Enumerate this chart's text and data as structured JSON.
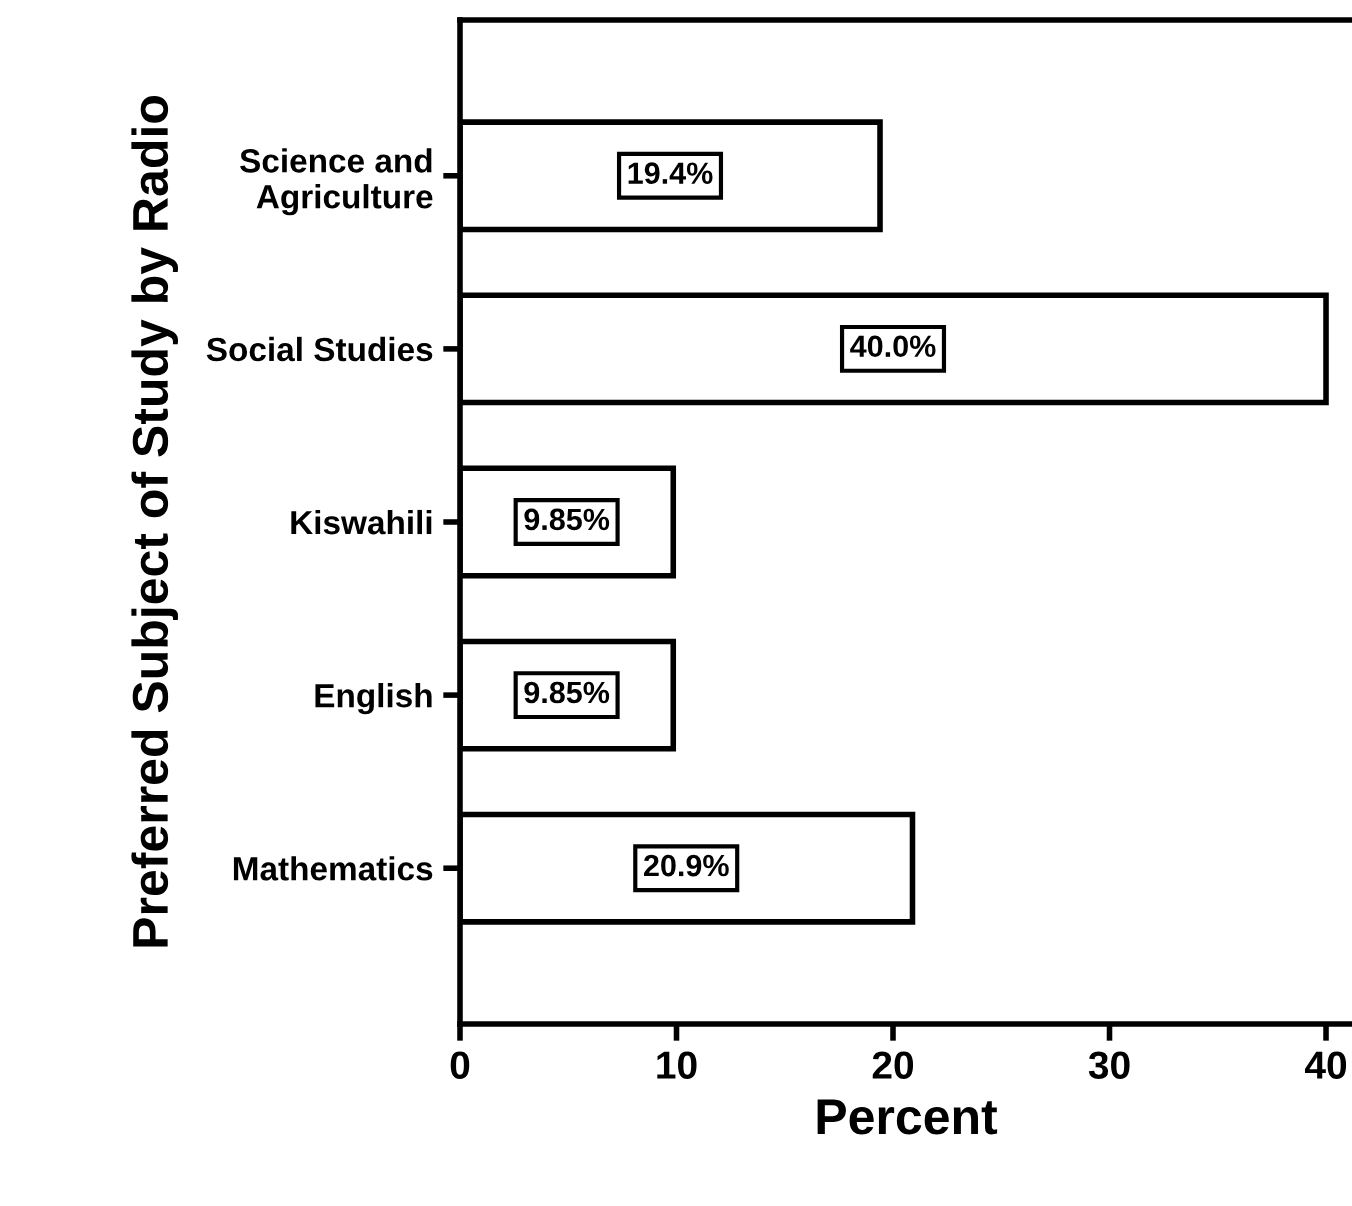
{
  "chart_data": {
    "type": "bar",
    "orientation": "horizontal",
    "ylabel": "Preferred Subject of Study by Radio",
    "xlabel": "Percent",
    "categories": [
      "Science and\nAgriculture",
      "Social Studies",
      "Kiswahili",
      "English",
      "Mathematics"
    ],
    "values": [
      19.4,
      40.0,
      9.85,
      9.85,
      20.9
    ],
    "value_labels": [
      "19.4%",
      "40.0%",
      "9.85%",
      "9.85%",
      "20.9%"
    ],
    "color": "#ffffff",
    "xlim": [
      0,
      41.2
    ],
    "xticks": [
      0,
      10,
      20,
      30,
      40
    ],
    "grid": false,
    "legend": false
  }
}
